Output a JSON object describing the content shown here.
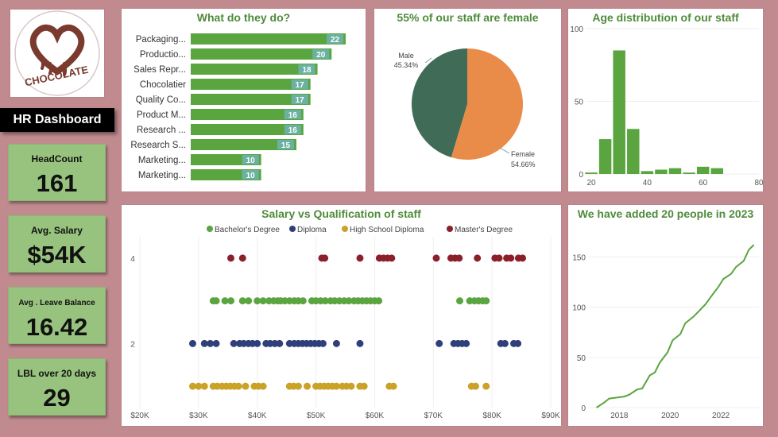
{
  "logo": {
    "text": "CHOCOLATE"
  },
  "dashboard_title": "HR Dashboard",
  "kpis": [
    {
      "label": "HeadCount",
      "value": "161"
    },
    {
      "label": "Avg. Salary",
      "value": "$54K"
    },
    {
      "label": "Avg . Leave Balance",
      "value": "16.42"
    },
    {
      "label": "LBL over 20 days",
      "value": "29"
    }
  ],
  "colors": {
    "background": "#c08a8f",
    "accent_green": "#5aa53f",
    "title_green": "#4e8b3a",
    "female": "#e98c4a",
    "male": "#3f6b57",
    "bar_label_bg": "#6bb1a2",
    "bachelor": "#5aa53f",
    "diploma": "#2f3f7a",
    "high_school": "#c9a227",
    "masters": "#8b1f2a"
  },
  "chart_data": [
    {
      "type": "bar",
      "title": "What do they do?",
      "categories": [
        "Packaging...",
        "Productio...",
        "Sales Repr...",
        "Chocolatier",
        "Quality Co...",
        "Product M...",
        "Research ...",
        "Research S...",
        "Marketing...",
        "Marketing..."
      ],
      "values": [
        22,
        20,
        18,
        17,
        17,
        16,
        16,
        15,
        10,
        10
      ]
    },
    {
      "type": "pie",
      "title": "55% of our staff are female",
      "slices": [
        {
          "label": "Female",
          "value": 54.66,
          "value_label": "54.66%"
        },
        {
          "label": "Male",
          "value": 45.34,
          "value_label": "45.34%"
        }
      ]
    },
    {
      "type": "bar",
      "title": "Age distribution of our staff",
      "x_ticks": [
        "20",
        "40",
        "60",
        "80"
      ],
      "y_ticks": [
        "0",
        "50",
        "100"
      ],
      "xlim": [
        18,
        80
      ],
      "ylim": [
        0,
        100
      ],
      "bins": [
        {
          "x": 20,
          "value": 1
        },
        {
          "x": 25,
          "value": 24
        },
        {
          "x": 30,
          "value": 85
        },
        {
          "x": 35,
          "value": 31
        },
        {
          "x": 40,
          "value": 2
        },
        {
          "x": 45,
          "value": 3
        },
        {
          "x": 50,
          "value": 4
        },
        {
          "x": 55,
          "value": 1
        },
        {
          "x": 60,
          "value": 5
        },
        {
          "x": 65,
          "value": 4
        }
      ]
    },
    {
      "type": "scatter",
      "title": "Salary vs Qualification of staff",
      "legend": [
        "Bachelor's Degree",
        "Diploma",
        "High School Diploma",
        "Master's Degree"
      ],
      "x_ticks": [
        "$20K",
        "$30K",
        "$40K",
        "$50K",
        "$60K",
        "$70K",
        "$80K",
        "$90K"
      ],
      "y_ticks": [
        "4",
        "2"
      ],
      "xlim": [
        20,
        90
      ],
      "ylim": [
        0.5,
        4.5
      ],
      "series": [
        {
          "name": "Bachelor's Degree",
          "y": 3,
          "x": [
            32.5,
            33,
            34.5,
            35.5,
            37.5,
            38.5,
            40,
            41,
            42,
            42.8,
            43.5,
            44,
            44.7,
            45.5,
            46.3,
            47,
            47.8,
            49.3,
            50,
            50.8,
            51.6,
            52.5,
            53.2,
            54,
            54.8,
            55.6,
            56.5,
            57.2,
            57.9,
            58.6,
            59.3,
            60,
            60.7,
            74.5,
            76.2,
            77,
            77.7,
            78.4,
            79
          ]
        },
        {
          "name": "Diploma",
          "y": 2,
          "x": [
            29,
            31,
            32,
            33,
            36,
            37,
            37.7,
            38.5,
            39.2,
            40,
            41.5,
            42.2,
            43,
            43.8,
            45.5,
            46.3,
            47,
            47.7,
            48.4,
            49.1,
            49.8,
            50.5,
            51.2,
            53.5,
            57.5,
            71,
            73.5,
            74.2,
            74.9,
            75.6,
            81.5,
            82.2,
            83.7,
            84.4
          ]
        },
        {
          "name": "High School Diploma",
          "y": 1,
          "x": [
            29,
            30,
            31,
            32.5,
            33.2,
            34,
            34.7,
            35.4,
            36.1,
            36.8,
            38,
            39.5,
            40.2,
            41,
            45.5,
            46.2,
            47,
            48.5,
            50,
            50.7,
            51.4,
            52.1,
            52.8,
            53.5,
            54.5,
            55.2,
            56,
            57.5,
            58.2,
            62.5,
            63.2,
            76.5,
            77.2,
            79
          ]
        },
        {
          "name": "Master's Degree",
          "y": 4,
          "x": [
            35.5,
            37.5,
            51,
            51.5,
            57.5,
            60.8,
            61.5,
            62.2,
            62.9,
            70.5,
            73,
            73.7,
            74.4,
            77.5,
            80.5,
            81.2,
            82.5,
            83.2,
            84.5,
            85.2
          ]
        }
      ]
    },
    {
      "type": "line",
      "title": "We have added 20 people in 2023",
      "x_ticks": [
        "2018",
        "2020",
        "2022"
      ],
      "y_ticks": [
        "0",
        "50",
        "100",
        "150"
      ],
      "xlim": [
        2016.8,
        2023.5
      ],
      "ylim": [
        0,
        170
      ],
      "x": [
        2017.1,
        2017.4,
        2017.6,
        2017.9,
        2018.2,
        2018.4,
        2018.7,
        2018.9,
        2019.2,
        2019.4,
        2019.6,
        2019.9,
        2020.1,
        2020.4,
        2020.6,
        2020.9,
        2021.1,
        2021.4,
        2021.6,
        2021.9,
        2022.1,
        2022.4,
        2022.6,
        2022.9,
        2023.1,
        2023.3
      ],
      "values": [
        0,
        5,
        9,
        10,
        11,
        13,
        18,
        19,
        32,
        35,
        45,
        55,
        67,
        73,
        84,
        90,
        95,
        103,
        110,
        120,
        128,
        133,
        140,
        146,
        157,
        162
      ]
    }
  ]
}
